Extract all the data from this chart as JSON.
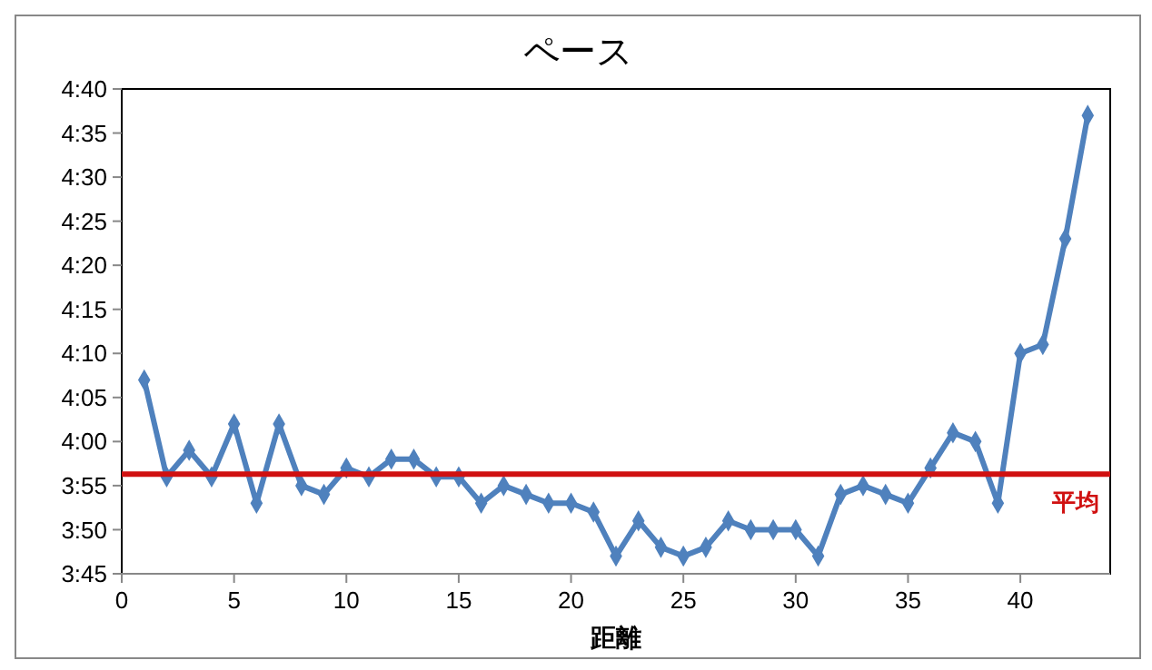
{
  "chart_data": {
    "type": "line",
    "title": "ペース",
    "xlabel": "距離",
    "x": [
      1,
      2,
      3,
      4,
      5,
      6,
      7,
      8,
      9,
      10,
      11,
      12,
      13,
      14,
      15,
      16,
      17,
      18,
      19,
      20,
      21,
      22,
      23,
      24,
      25,
      26,
      27,
      28,
      29,
      30,
      31,
      32,
      33,
      34,
      35,
      36,
      37,
      38,
      39,
      40,
      41,
      42,
      43
    ],
    "series": [
      {
        "color": "#4f81bd",
        "values": [
          247,
          236,
          239,
          236,
          242,
          233,
          242,
          235,
          234,
          237,
          236,
          238,
          238,
          236,
          236,
          233,
          235,
          234,
          233,
          233,
          232,
          227,
          231,
          228,
          227,
          228,
          231,
          230,
          230,
          230,
          227,
          234,
          235,
          234,
          233,
          237,
          241,
          240,
          233,
          250,
          251,
          263,
          277
        ]
      }
    ],
    "xlim": [
      0,
      44
    ],
    "xticks": [
      0,
      5,
      10,
      15,
      20,
      25,
      30,
      35,
      40
    ],
    "ylim": [
      225,
      280
    ],
    "yticks": [
      {
        "value": 225,
        "label": "3:45"
      },
      {
        "value": 230,
        "label": "3:50"
      },
      {
        "value": 235,
        "label": "3:55"
      },
      {
        "value": 240,
        "label": "4:00"
      },
      {
        "value": 245,
        "label": "4:05"
      },
      {
        "value": 250,
        "label": "4:10"
      },
      {
        "value": 255,
        "label": "4:15"
      },
      {
        "value": 260,
        "label": "4:20"
      },
      {
        "value": 265,
        "label": "4:25"
      },
      {
        "value": 270,
        "label": "4:30"
      },
      {
        "value": 275,
        "label": "4:35"
      },
      {
        "value": 280,
        "label": "4:40"
      }
    ],
    "ref_lines": [
      {
        "axis": "y",
        "value": 236.3,
        "label": "平均",
        "color": "#d01010"
      }
    ],
    "marker": "diamond",
    "line_style": "solid"
  }
}
